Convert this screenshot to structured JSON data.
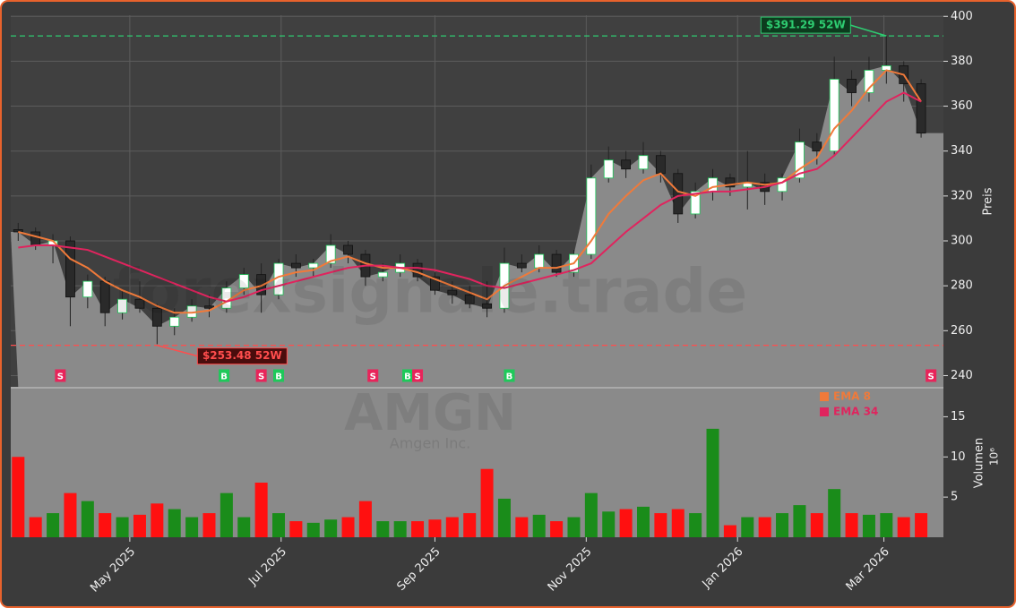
{
  "chart_data": {
    "type": "candlestick",
    "watermark": "forexsignale.trade",
    "symbol": "AMGN",
    "company": "Amgen Inc.",
    "ylabel": "Preis",
    "xlim": [
      "2025-03-14",
      "2026-03-25"
    ],
    "xticks": [
      {
        "value": "2025-05-01",
        "label": "May 2025"
      },
      {
        "value": "2025-07-01",
        "label": "Jul 2025"
      },
      {
        "value": "2025-09-01",
        "label": "Sep 2025"
      },
      {
        "value": "2025-11-01",
        "label": "Nov 2025"
      },
      {
        "value": "2026-01-01",
        "label": "Jan 2026"
      },
      {
        "value": "2026-03-01",
        "label": "Mar 2026"
      }
    ],
    "ylim": [
      235,
      400.5
    ],
    "yticks": [
      240,
      260,
      280,
      300,
      320,
      340,
      360,
      380,
      400
    ],
    "grid": true,
    "up_color": "#ffffff",
    "down_color": "#2a2a2a",
    "area_color": "#8a8a8a",
    "dates": [
      "2025-03-17",
      "2025-03-24",
      "2025-03-31",
      "2025-04-07",
      "2025-04-14",
      "2025-04-21",
      "2025-04-28",
      "2025-05-05",
      "2025-05-12",
      "2025-05-19",
      "2025-05-26",
      "2025-06-02",
      "2025-06-09",
      "2025-06-16",
      "2025-06-23",
      "2025-06-30",
      "2025-07-07",
      "2025-07-14",
      "2025-07-21",
      "2025-07-28",
      "2025-08-04",
      "2025-08-11",
      "2025-08-18",
      "2025-08-25",
      "2025-09-01",
      "2025-09-08",
      "2025-09-15",
      "2025-09-22",
      "2025-09-29",
      "2025-10-06",
      "2025-10-13",
      "2025-10-20",
      "2025-10-27",
      "2025-11-03",
      "2025-11-10",
      "2025-11-17",
      "2025-11-24",
      "2025-12-01",
      "2025-12-08",
      "2025-12-15",
      "2025-12-22",
      "2025-12-29",
      "2026-01-05",
      "2026-01-12",
      "2026-01-19",
      "2026-01-26",
      "2026-02-02",
      "2026-02-09",
      "2026-02-16",
      "2026-02-23",
      "2026-03-02",
      "2026-03-09",
      "2026-03-16"
    ],
    "open": [
      305,
      304,
      298,
      300,
      275,
      282,
      268,
      274,
      270,
      262,
      266,
      271,
      270,
      279,
      285,
      276,
      290,
      288,
      290,
      298,
      294,
      284,
      286,
      290,
      284,
      278,
      276,
      272,
      270,
      290,
      288,
      294,
      286,
      294,
      328,
      336,
      332,
      338,
      330,
      312,
      322,
      328,
      324,
      326,
      322,
      328,
      344,
      340,
      372,
      366,
      376,
      378,
      370
    ],
    "high": [
      308,
      306,
      303,
      302,
      285,
      284,
      278,
      282,
      272,
      270,
      274,
      276,
      282,
      288,
      290,
      292,
      294,
      292,
      303,
      300,
      296,
      290,
      294,
      292,
      286,
      282,
      280,
      282,
      297,
      294,
      298,
      296,
      296,
      334,
      342,
      340,
      344,
      340,
      332,
      326,
      332,
      330,
      340,
      330,
      330,
      350,
      348,
      382,
      376,
      382,
      391.29,
      380,
      372
    ],
    "low": [
      300,
      296,
      290,
      262,
      270,
      262,
      265,
      268,
      254,
      258,
      264,
      266,
      268,
      276,
      268,
      274,
      284,
      284,
      288,
      290,
      280,
      282,
      284,
      282,
      276,
      272,
      270,
      266,
      268,
      286,
      286,
      284,
      284,
      292,
      326,
      328,
      330,
      326,
      308,
      310,
      318,
      320,
      314,
      316,
      318,
      326,
      334,
      338,
      360,
      362,
      370,
      362,
      346
    ],
    "close": [
      304,
      298,
      300,
      275,
      282,
      268,
      274,
      270,
      262,
      266,
      271,
      270,
      279,
      285,
      276,
      290,
      288,
      290,
      298,
      294,
      284,
      286,
      290,
      284,
      278,
      276,
      272,
      270,
      290,
      288,
      294,
      286,
      294,
      328,
      336,
      332,
      338,
      330,
      312,
      322,
      328,
      324,
      326,
      322,
      328,
      344,
      340,
      372,
      366,
      376,
      378,
      370,
      348
    ],
    "series": [
      {
        "name": "EMA 8",
        "color": "#f07a3a",
        "values": [
          304,
          302,
          300,
          292,
          288,
          282,
          278,
          275,
          271,
          268,
          268,
          269,
          273,
          278,
          280,
          284,
          286,
          287,
          291,
          293,
          290,
          288,
          288,
          286,
          283,
          280,
          277,
          274,
          280,
          284,
          288,
          288,
          290,
          300,
          312,
          320,
          327,
          330,
          322,
          320,
          324,
          325,
          326,
          325,
          326,
          332,
          337,
          350,
          358,
          368,
          376,
          374,
          362
        ]
      },
      {
        "name": "EMA 34",
        "color": "#e0245e",
        "values": [
          297,
          298,
          298,
          297,
          296,
          293,
          290,
          287,
          284,
          281,
          278,
          275,
          273,
          275,
          278,
          280,
          282,
          284,
          286,
          288,
          289,
          289,
          288,
          288,
          287,
          285,
          283,
          280,
          279,
          281,
          283,
          285,
          287,
          290,
          297,
          304,
          310,
          316,
          320,
          321,
          322,
          322,
          323,
          324,
          326,
          330,
          332,
          338,
          346,
          354,
          362,
          366,
          362
        ]
      }
    ],
    "hlines": [
      {
        "value": 391.29,
        "label": "$391.29 52W",
        "color": "#2ecc71",
        "date": "2026-03-02"
      },
      {
        "value": 253.48,
        "label": "$253.48 52W",
        "color": "#ff4d4d",
        "date": "2025-05-12"
      }
    ],
    "signals": [
      {
        "date": "2025-04-03",
        "label": "S"
      },
      {
        "date": "2025-06-08",
        "label": "B"
      },
      {
        "date": "2025-06-23",
        "label": "S"
      },
      {
        "date": "2025-06-30",
        "label": "B"
      },
      {
        "date": "2025-08-07",
        "label": "S"
      },
      {
        "date": "2025-08-21",
        "label": "B"
      },
      {
        "date": "2025-08-25",
        "label": "S"
      },
      {
        "date": "2025-10-01",
        "label": "B"
      },
      {
        "date": "2026-03-20",
        "label": "S"
      }
    ],
    "signal_colors": {
      "S": "#e8245a",
      "B": "#1ec95a"
    },
    "volume": {
      "ylabel": "Volumen",
      "exponent": "10⁶",
      "ylim": [
        0,
        18.5
      ],
      "yticks": [
        5,
        10,
        15
      ],
      "up_color": "#1a8c1a",
      "down_color": "#ff1010",
      "values": [
        10.0,
        2.5,
        3.0,
        5.5,
        4.5,
        3.0,
        2.5,
        2.8,
        4.2,
        3.5,
        2.5,
        3.0,
        5.5,
        2.5,
        6.8,
        3.0,
        2.0,
        1.8,
        2.2,
        2.5,
        4.5,
        2.0,
        2.0,
        2.0,
        2.2,
        2.5,
        3.0,
        8.5,
        4.8,
        2.5,
        2.8,
        2.0,
        2.5,
        5.5,
        3.2,
        3.5,
        3.8,
        3.0,
        3.5,
        3.0,
        13.5,
        1.5,
        2.5,
        2.5,
        3.0,
        4.0,
        3.0,
        6.0,
        3.0,
        2.8,
        3.0,
        2.5,
        3.0
      ]
    }
  }
}
